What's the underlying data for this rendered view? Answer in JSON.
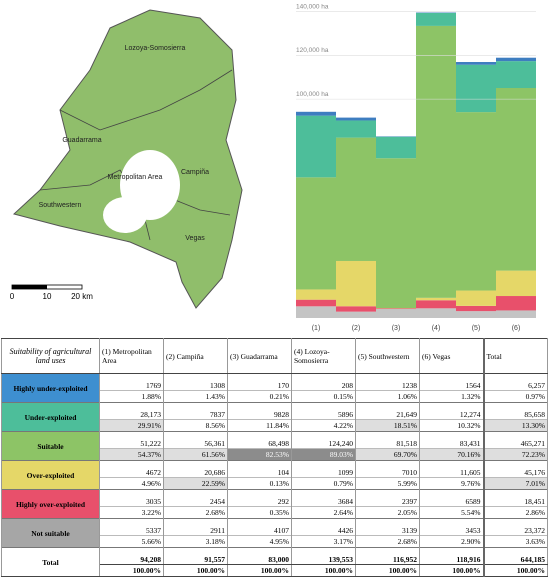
{
  "map": {
    "labels": [
      "Lozoya-Somosierra",
      "Guadarrama",
      "Metropolitan Area",
      "Campiña",
      "Southwestern",
      "Vegas"
    ],
    "scale": [
      "0",
      "10",
      "20 km"
    ]
  },
  "chart_data": {
    "type": "bar",
    "stacked": true,
    "categories": [
      "(1)",
      "(2)",
      "(3)",
      "(4)",
      "(5)",
      "(6)"
    ],
    "series": [
      {
        "color": "#c4c4c4",
        "values": [
          5337,
          2911,
          4107,
          4426,
          3139,
          3453
        ]
      },
      {
        "color": "#e8506b",
        "values": [
          3035,
          2454,
          292,
          3684,
          2397,
          6589
        ]
      },
      {
        "color": "#e5d768",
        "values": [
          4672,
          20686,
          104,
          1099,
          7010,
          11605
        ]
      },
      {
        "color": "#8dc466",
        "values": [
          51222,
          56361,
          68498,
          124240,
          81518,
          83431
        ]
      },
      {
        "color": "#4dbe9a",
        "values": [
          28173,
          7837,
          9828,
          5896,
          21649,
          12274
        ]
      },
      {
        "color": "#3e7dc0",
        "values": [
          1769,
          1308,
          170,
          208,
          1238,
          1564
        ]
      }
    ],
    "ylim": [
      0,
      143000
    ],
    "yticks": [
      {
        "value": 100000,
        "label": "100,000 ha"
      },
      {
        "value": 120000,
        "label": "120,000 ha"
      },
      {
        "value": 140000,
        "label": "140,000 ha"
      }
    ],
    "grid": true
  },
  "table": {
    "columns": [
      "Suitability of agricultural land uses",
      "(1) Metropolitan Area",
      "(2) Campiña",
      "(3) Guadarrama",
      "(4) Lozoya-Somosierra",
      "(5) Southwestern",
      "(6) Vegas",
      "Total"
    ],
    "rows": [
      {
        "label": "Highly under-exploited",
        "color": "#3e8fd0",
        "values": [
          "1769",
          "1308",
          "170",
          "208",
          "1238",
          "1564",
          "6,257"
        ],
        "percents": [
          "1.88%",
          "1.43%",
          "0.21%",
          "0.15%",
          "1.06%",
          "1.32%",
          "0.97%"
        ]
      },
      {
        "label": "Under-exploited",
        "color": "#4dbe9a",
        "values": [
          "28,173",
          "7837",
          "9828",
          "5896",
          "21,649",
          "12,274",
          "85,658"
        ],
        "percents": [
          "29.91%",
          "8.56%",
          "11.84%",
          "4.22%",
          "18.51%",
          "10.32%",
          "13.30%"
        ]
      },
      {
        "label": "Suitable",
        "color": "#8dc466",
        "values": [
          "51,222",
          "56,361",
          "68,498",
          "124,240",
          "81,518",
          "83,431",
          "465,271"
        ],
        "percents": [
          "54.37%",
          "61.56%",
          "82.53%",
          "89.03%",
          "69.70%",
          "70.16%",
          "72.23%"
        ]
      },
      {
        "label": "Over-exploited",
        "color": "#e5d768",
        "values": [
          "4672",
          "20,686",
          "104",
          "1099",
          "7010",
          "11,605",
          "45,176"
        ],
        "percents": [
          "4.96%",
          "22.59%",
          "0.13%",
          "0.79%",
          "5.99%",
          "9.76%",
          "7.01%"
        ]
      },
      {
        "label": "Highly over-exploited",
        "color": "#e8506b",
        "values": [
          "3035",
          "2454",
          "292",
          "3684",
          "2397",
          "6589",
          "18,451"
        ],
        "percents": [
          "3.22%",
          "2.68%",
          "0.35%",
          "2.64%",
          "2.05%",
          "5.54%",
          "2.86%"
        ]
      },
      {
        "label": "Not suitable",
        "color": "#a6a6a6",
        "values": [
          "5337",
          "2911",
          "4107",
          "4426",
          "3139",
          "3453",
          "23,372"
        ],
        "percents": [
          "5.66%",
          "3.18%",
          "4.95%",
          "3.17%",
          "2.68%",
          "2.90%",
          "3.63%"
        ]
      }
    ],
    "total": {
      "label": "Total",
      "values": [
        "94,208",
        "91,557",
        "83,000",
        "139,553",
        "116,952",
        "118,916",
        "644,185"
      ],
      "percents": [
        "100.00%",
        "100.00%",
        "100.00%",
        "100.00%",
        "100.00%",
        "100.00%",
        "100.00%"
      ]
    }
  }
}
